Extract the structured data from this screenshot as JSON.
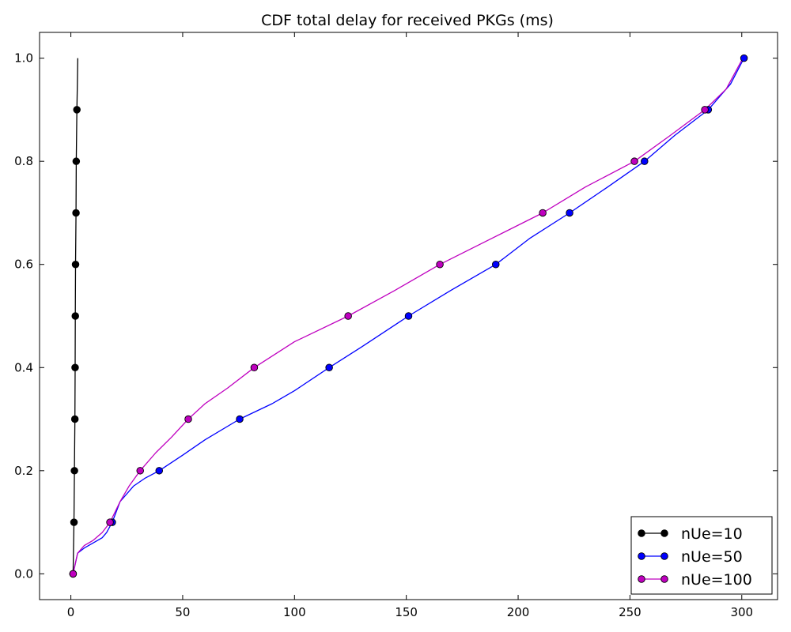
{
  "chart_data": {
    "type": "line",
    "title": "CDF total delay for received PKGs (ms)",
    "xlabel": "",
    "ylabel": "",
    "xlim": [
      -14,
      316
    ],
    "ylim": [
      -0.05,
      1.05
    ],
    "xticks": [
      0,
      50,
      100,
      150,
      200,
      250,
      300
    ],
    "xtick_labels": [
      "0",
      "50",
      "100",
      "150",
      "200",
      "250",
      "300"
    ],
    "yticks": [
      0.0,
      0.2,
      0.4,
      0.6,
      0.8,
      1.0
    ],
    "ytick_labels": [
      "0.0",
      "0.2",
      "0.4",
      "0.6",
      "0.8",
      "1.0"
    ],
    "grid": false,
    "legend_position": "lower-right",
    "series": [
      {
        "name": "nUe=10",
        "color": "#000000",
        "x": [
          1.0,
          1.4,
          1.6,
          1.8,
          1.9,
          2.0,
          2.1,
          2.3,
          2.4,
          2.7,
          2.9,
          3.1
        ],
        "y": [
          0.0,
          0.1,
          0.2,
          0.3,
          0.4,
          0.5,
          0.6,
          0.7,
          0.8,
          0.9,
          0.95,
          1.0
        ],
        "marker_x": [
          1.0,
          1.4,
          1.6,
          1.8,
          1.9,
          2.0,
          2.1,
          2.3,
          2.4,
          2.7
        ],
        "marker_y": [
          0.0,
          0.1,
          0.2,
          0.3,
          0.4,
          0.5,
          0.6,
          0.7,
          0.8,
          0.9
        ]
      },
      {
        "name": "nUe=50",
        "color": "#0000ff",
        "x": [
          1,
          3,
          6,
          10,
          14,
          16,
          18.5,
          22,
          28,
          33,
          39.5,
          50,
          60,
          75.5,
          90,
          100,
          115.5,
          130,
          151,
          170,
          190,
          205,
          223,
          240,
          256.5,
          270,
          285,
          295,
          301
        ],
        "y": [
          0.0,
          0.04,
          0.05,
          0.06,
          0.07,
          0.08,
          0.1,
          0.14,
          0.17,
          0.185,
          0.2,
          0.23,
          0.26,
          0.3,
          0.33,
          0.355,
          0.4,
          0.44,
          0.5,
          0.55,
          0.6,
          0.65,
          0.7,
          0.75,
          0.8,
          0.85,
          0.9,
          0.95,
          1.0
        ],
        "marker_x": [
          1,
          18.5,
          39.5,
          75.5,
          115.5,
          151,
          190,
          223,
          256.5,
          285,
          301
        ],
        "marker_y": [
          0.0,
          0.1,
          0.2,
          0.3,
          0.4,
          0.5,
          0.6,
          0.7,
          0.8,
          0.9,
          1.0
        ]
      },
      {
        "name": "nUe=100",
        "color": "#bf00bf",
        "x": [
          1,
          3,
          6,
          10,
          14,
          17.5,
          22,
          26,
          31,
          38,
          45,
          52.5,
          60,
          70,
          82,
          100,
          124,
          145,
          165,
          188,
          211,
          230,
          252,
          268,
          283.5,
          293,
          300.5
        ],
        "y": [
          0.0,
          0.04,
          0.055,
          0.065,
          0.08,
          0.1,
          0.14,
          0.17,
          0.2,
          0.235,
          0.265,
          0.3,
          0.33,
          0.36,
          0.4,
          0.45,
          0.5,
          0.55,
          0.6,
          0.65,
          0.7,
          0.75,
          0.8,
          0.85,
          0.9,
          0.94,
          1.0
        ],
        "marker_x": [
          1,
          17.5,
          31,
          52.5,
          82,
          124,
          165,
          211,
          252,
          283.5
        ],
        "marker_y": [
          0.0,
          0.1,
          0.2,
          0.3,
          0.4,
          0.5,
          0.6,
          0.7,
          0.8,
          0.9
        ]
      }
    ]
  }
}
